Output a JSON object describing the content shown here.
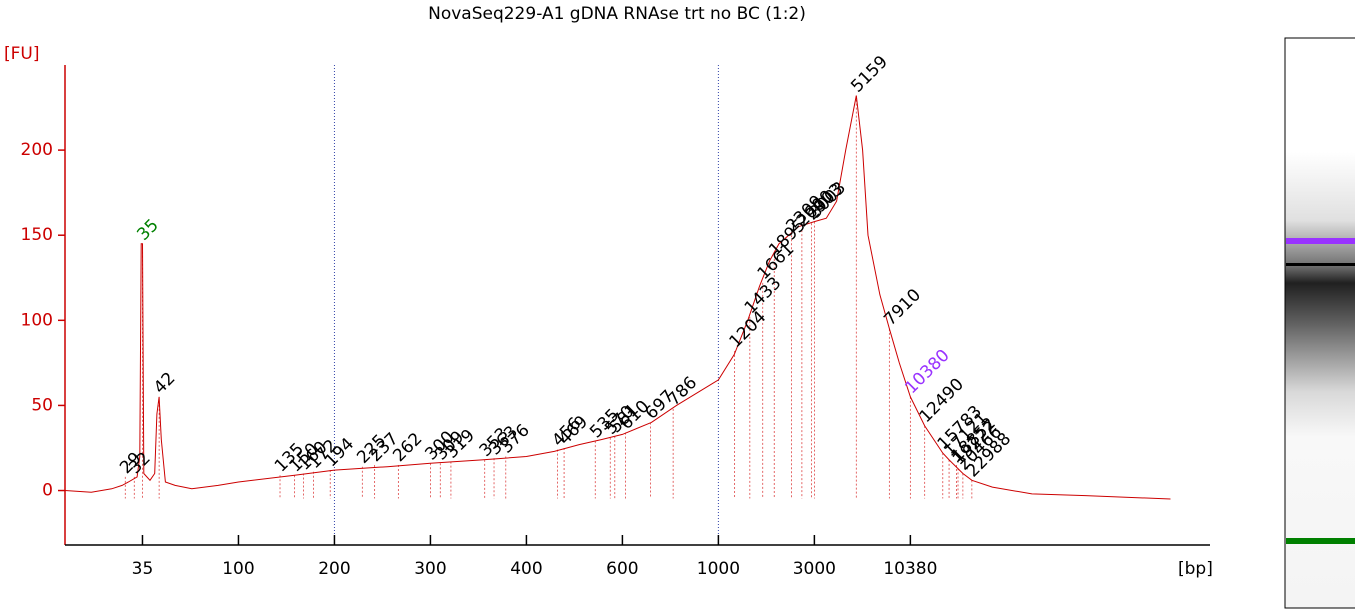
{
  "chart_data": {
    "type": "line",
    "title": "NovaSeq229-A1 gDNA RNAse trt no BC (1:2)",
    "ylabel": "[FU]",
    "xlabel": "[bp]",
    "x": [
      15,
      20,
      25,
      28,
      30,
      33,
      34,
      34.5,
      35,
      35.5,
      38,
      40,
      41,
      42,
      43,
      45,
      50,
      60,
      80,
      100,
      150,
      200,
      250,
      300,
      350,
      400,
      450,
      500,
      550,
      600,
      700,
      800,
      1000,
      1200,
      1400,
      1600,
      1800,
      2000,
      2500,
      3000,
      3500,
      4000,
      4500,
      5159,
      5600,
      6000,
      7000,
      7910,
      9000,
      10380,
      12490,
      15783,
      17121,
      20466,
      22988,
      30000,
      50000,
      100000,
      300000
    ],
    "series": [
      {
        "color": "#cc0000",
        "values": [
          0,
          -1,
          1,
          3,
          5,
          8,
          20,
          145,
          145,
          10,
          6,
          10,
          45,
          55,
          30,
          5,
          3,
          1,
          3,
          5,
          9,
          12,
          14,
          16,
          18,
          20,
          23,
          27,
          30,
          33,
          40,
          50,
          65,
          80,
          100,
          120,
          135,
          145,
          155,
          158,
          160,
          170,
          200,
          232,
          200,
          150,
          115,
          95,
          75,
          55,
          38,
          22,
          18,
          10,
          6,
          2,
          -2,
          -3,
          -5
        ]
      }
    ],
    "xlim": [
      15,
      500000
    ],
    "ylim": [
      -32,
      250
    ],
    "xticks": [
      35,
      100,
      200,
      300,
      400,
      600,
      1000,
      3000,
      10380
    ],
    "yticks": [
      0,
      50,
      100,
      150,
      200
    ],
    "reference_lines": [
      200,
      1000
    ],
    "peaks": {
      "color": "#000000",
      "x": [
        29,
        32,
        35,
        42,
        135,
        150,
        160,
        172,
        194,
        225,
        237,
        262,
        300,
        309,
        319,
        353,
        363,
        376,
        456,
        469,
        535,
        570,
        581,
        610,
        697,
        786,
        1204,
        1433,
        1661,
        1895,
        2309,
        2600,
        2903,
        3003,
        5159,
        7910,
        10380,
        12490,
        15783,
        17121,
        18852,
        19222,
        20466,
        22988
      ],
      "y": [
        8,
        8,
        145,
        55,
        9,
        9,
        10,
        11,
        12,
        14,
        15,
        15,
        16,
        16,
        17,
        18,
        19,
        20,
        24,
        25,
        29,
        31,
        32,
        34,
        40,
        48,
        82,
        102,
        122,
        136,
        150,
        153,
        157,
        158,
        232,
        95,
        55,
        38,
        22,
        18,
        15,
        13,
        10,
        6
      ]
    },
    "markers": [
      {
        "x": 35,
        "color": "#008000"
      },
      {
        "x": 10380,
        "color": "#9933ff"
      }
    ]
  }
}
